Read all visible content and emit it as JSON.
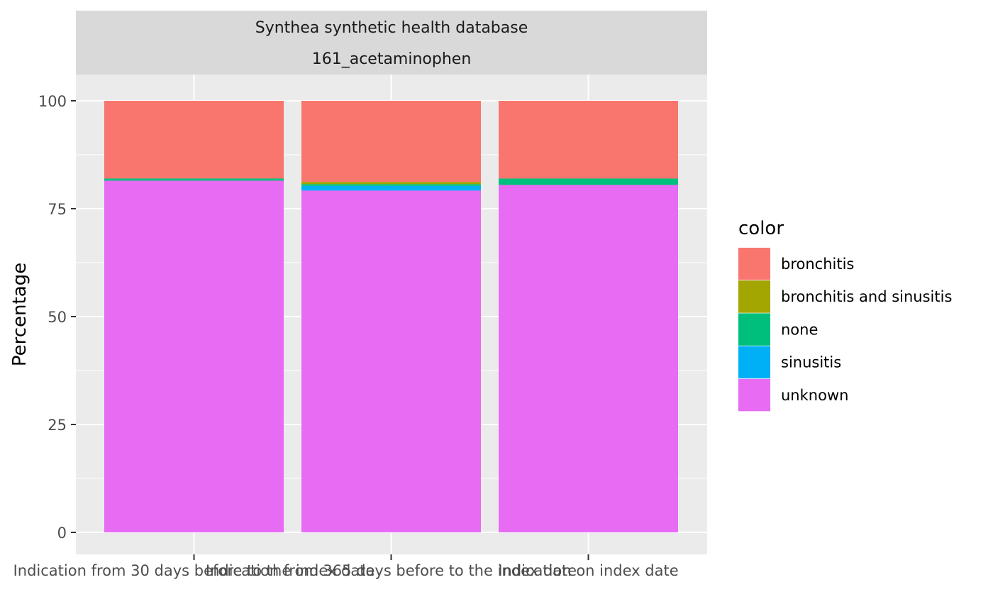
{
  "chart_data": {
    "type": "bar",
    "stacked": true,
    "facet": {
      "line1": "Synthea synthetic health database",
      "line2": "161_acetaminophen"
    },
    "ylabel": "Percentage",
    "xlabel": "",
    "ylim": [
      0,
      105
    ],
    "yticks": [
      0,
      25,
      50,
      75,
      100
    ],
    "grid": true,
    "categories": [
      "Indication from 30 days before to the index date",
      "Indication from 365 days before to the index date",
      "Indication on index date"
    ],
    "legend": {
      "title": "color",
      "position": "right"
    },
    "series": [
      {
        "name": "unknown",
        "color": "#E76BF3",
        "values": [
          81.5,
          79.2,
          80.5
        ]
      },
      {
        "name": "sinusitis",
        "color": "#00B0F6",
        "values": [
          0,
          1.1,
          0
        ]
      },
      {
        "name": "none",
        "color": "#00BF7D",
        "values": [
          0.5,
          0.4,
          1.5
        ]
      },
      {
        "name": "bronchitis and sinusitis",
        "color": "#A3A500",
        "values": [
          0,
          0.5,
          0
        ]
      },
      {
        "name": "bronchitis",
        "color": "#F8766D",
        "values": [
          18.0,
          18.8,
          18.0
        ]
      }
    ],
    "legend_order": [
      "bronchitis",
      "bronchitis and sinusitis",
      "none",
      "sinusitis",
      "unknown"
    ]
  }
}
